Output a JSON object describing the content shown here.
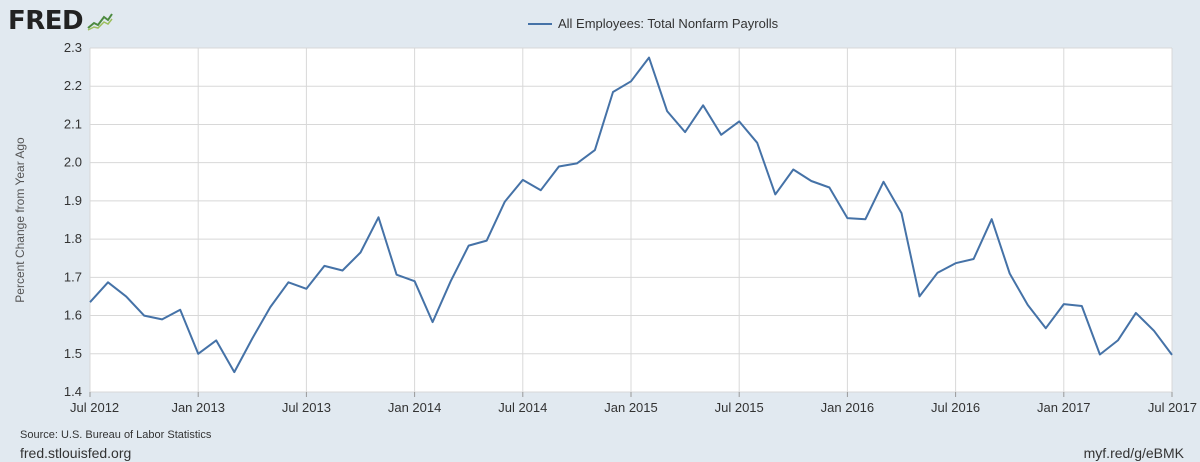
{
  "header": {
    "logo_text": "FRED"
  },
  "footer": {
    "source": "Source: U.S. Bureau of Labor Statistics",
    "site": "fred.stlouisfed.org",
    "short_url": "myf.red/g/eBMK"
  },
  "colors": {
    "background": "#e1e9f0",
    "plot_background": "#ffffff",
    "series": "#4572a7",
    "grid": "#d8d8d8"
  },
  "chart_data": {
    "type": "line",
    "title": "",
    "xlabel": "",
    "ylabel": "Percent Change from Year Ago",
    "ylim": [
      1.4,
      2.3
    ],
    "yticks": [
      "1.4",
      "1.5",
      "1.6",
      "1.7",
      "1.8",
      "1.9",
      "2.0",
      "2.1",
      "2.2",
      "2.3"
    ],
    "xlim": [
      "2012-07",
      "2017-07"
    ],
    "xticks": [
      {
        "date": "2012-07",
        "label": "Jul 2012"
      },
      {
        "date": "2013-01",
        "label": "Jan 2013"
      },
      {
        "date": "2013-07",
        "label": "Jul 2013"
      },
      {
        "date": "2014-01",
        "label": "Jan 2014"
      },
      {
        "date": "2014-07",
        "label": "Jul 2014"
      },
      {
        "date": "2015-01",
        "label": "Jan 2015"
      },
      {
        "date": "2015-07",
        "label": "Jul 2015"
      },
      {
        "date": "2016-01",
        "label": "Jan 2016"
      },
      {
        "date": "2016-07",
        "label": "Jul 2016"
      },
      {
        "date": "2017-01",
        "label": "Jan 2017"
      },
      {
        "date": "2017-07",
        "label": "Jul 2017"
      }
    ],
    "grid": true,
    "legend_position": "top-center",
    "series": [
      {
        "name": "All Employees: Total Nonfarm Payrolls",
        "color": "#4572a7",
        "x": [
          "2012-07",
          "2012-08",
          "2012-09",
          "2012-10",
          "2012-11",
          "2012-12",
          "2013-01",
          "2013-02",
          "2013-03",
          "2013-04",
          "2013-05",
          "2013-06",
          "2013-07",
          "2013-08",
          "2013-09",
          "2013-10",
          "2013-11",
          "2013-12",
          "2014-01",
          "2014-02",
          "2014-03",
          "2014-04",
          "2014-05",
          "2014-06",
          "2014-07",
          "2014-08",
          "2014-09",
          "2014-10",
          "2014-11",
          "2014-12",
          "2015-01",
          "2015-02",
          "2015-03",
          "2015-04",
          "2015-05",
          "2015-06",
          "2015-07",
          "2015-08",
          "2015-09",
          "2015-10",
          "2015-11",
          "2015-12",
          "2016-01",
          "2016-02",
          "2016-03",
          "2016-04",
          "2016-05",
          "2016-06",
          "2016-07",
          "2016-08",
          "2016-09",
          "2016-10",
          "2016-11",
          "2016-12",
          "2017-01",
          "2017-02",
          "2017-03",
          "2017-04",
          "2017-05",
          "2017-06",
          "2017-07"
        ],
        "values": [
          1.635,
          1.687,
          1.65,
          1.6,
          1.59,
          1.615,
          1.5,
          1.535,
          1.452,
          1.54,
          1.622,
          1.687,
          1.67,
          1.73,
          1.718,
          1.765,
          1.857,
          1.707,
          1.69,
          1.583,
          1.69,
          1.783,
          1.796,
          1.898,
          1.955,
          1.928,
          1.99,
          1.998,
          2.033,
          2.185,
          2.213,
          2.275,
          2.135,
          2.08,
          2.15,
          2.073,
          2.108,
          2.052,
          1.917,
          1.982,
          1.952,
          1.935,
          1.855,
          1.852,
          1.95,
          1.868,
          1.65,
          1.712,
          1.737,
          1.748,
          1.852,
          1.71,
          1.628,
          1.567,
          1.63,
          1.625,
          1.498,
          1.535,
          1.607,
          1.56,
          1.497
        ]
      }
    ]
  }
}
